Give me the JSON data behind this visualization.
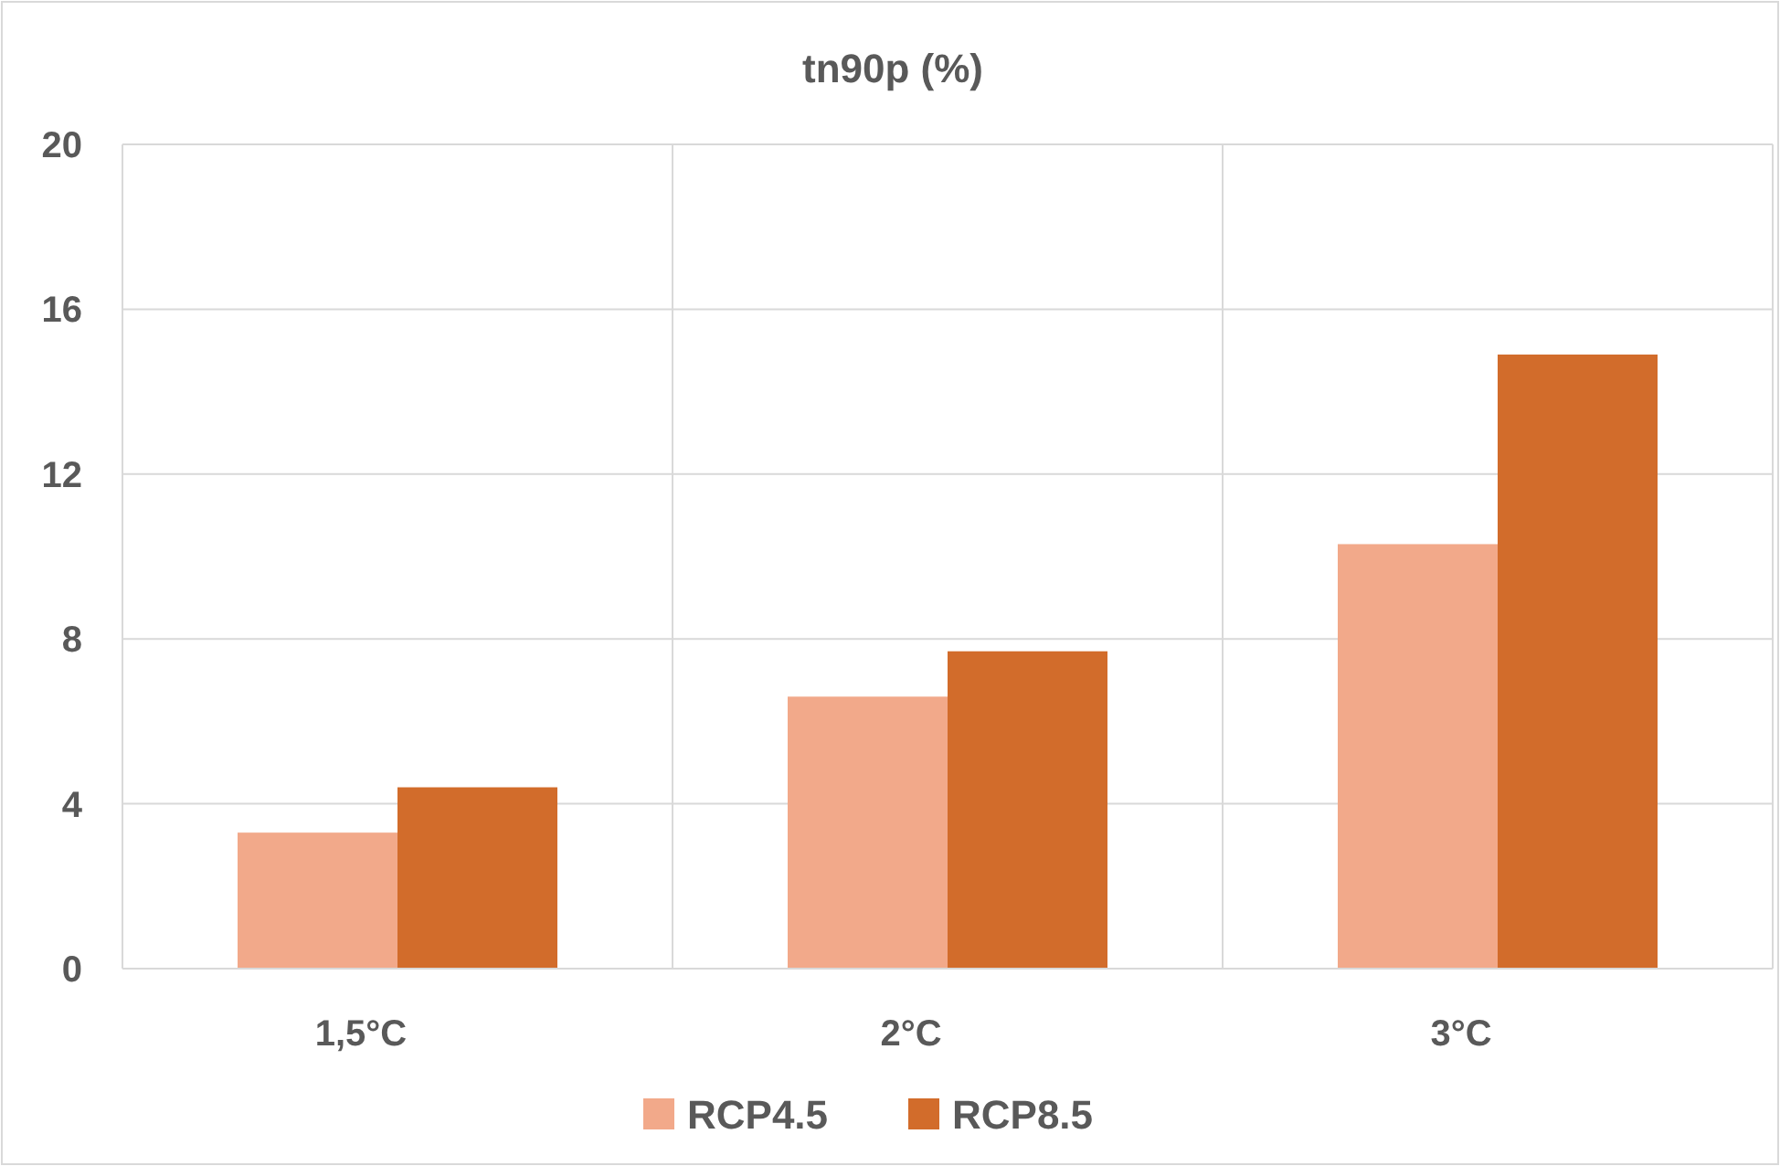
{
  "chart_data": {
    "type": "bar",
    "title": "tn90p (%)",
    "categories": [
      "1,5°C",
      "2°C",
      "3°C"
    ],
    "series": [
      {
        "name": "RCP4.5",
        "color": "#f2a98a",
        "values": [
          3.3,
          6.6,
          10.3
        ]
      },
      {
        "name": "RCP8.5",
        "color": "#d26c2b",
        "values": [
          4.4,
          7.7,
          14.9
        ]
      }
    ],
    "ylim": [
      0,
      20
    ],
    "yticks": [
      0,
      4,
      8,
      12,
      16,
      20
    ],
    "grid": true,
    "legend": "bottom"
  }
}
